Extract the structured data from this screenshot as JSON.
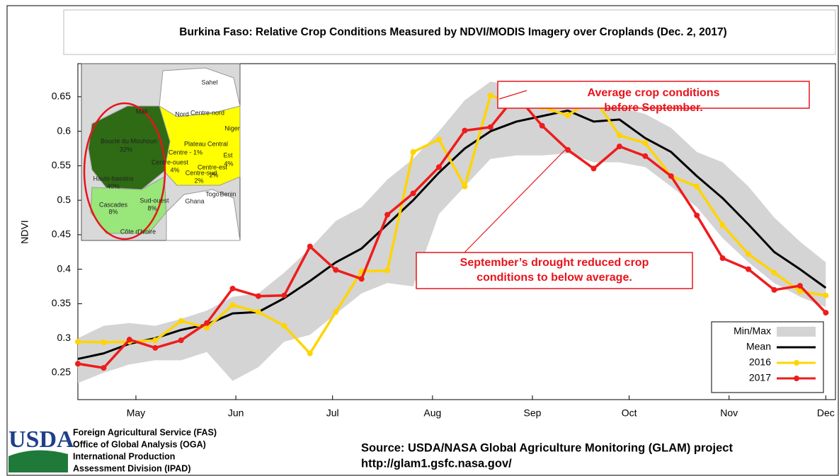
{
  "chart_data": {
    "type": "line",
    "title": "Burkina Faso: Relative Crop Conditions Measured by NDVI/MODIS Imagery over Croplands (Dec. 2, 2017)",
    "y_label": "NDVI",
    "x": [
      103,
      111,
      119,
      127,
      135,
      143,
      151,
      159,
      167,
      175,
      183,
      191,
      199,
      207,
      215,
      223,
      231,
      239,
      247,
      255,
      263,
      271,
      279,
      287,
      295,
      303,
      311,
      319,
      327,
      335
    ],
    "xlim": [
      103,
      338
    ],
    "xticks": [
      {
        "value": 121,
        "label": "May"
      },
      {
        "value": 152,
        "label": "Jun"
      },
      {
        "value": 182,
        "label": "Jul"
      },
      {
        "value": 213,
        "label": "Aug"
      },
      {
        "value": 244,
        "label": "Sep"
      },
      {
        "value": 274,
        "label": "Oct"
      },
      {
        "value": 305,
        "label": "Nov"
      },
      {
        "value": 335,
        "label": "Dec"
      }
    ],
    "ylim": [
      0.211,
      0.698
    ],
    "yticks": [
      0.25,
      0.3,
      0.35,
      0.4,
      0.45,
      0.5,
      0.55,
      0.6,
      0.65
    ],
    "legend": "lower right",
    "series": [
      {
        "name": "Min/Max",
        "type": "band",
        "color": "#d4d4d4",
        "high": [
          0.3,
          0.318,
          0.322,
          0.318,
          0.328,
          0.34,
          0.36,
          0.365,
          0.395,
          0.43,
          0.47,
          0.49,
          0.53,
          0.56,
          0.6,
          0.645,
          0.672,
          0.665,
          0.658,
          0.65,
          0.658,
          0.635,
          0.625,
          0.605,
          0.57,
          0.555,
          0.52,
          0.475,
          0.44,
          0.41
        ],
        "low": [
          0.235,
          0.25,
          0.262,
          0.268,
          0.268,
          0.28,
          0.238,
          0.258,
          0.295,
          0.305,
          0.335,
          0.365,
          0.38,
          0.375,
          0.48,
          0.52,
          0.56,
          0.565,
          0.565,
          0.568,
          0.555,
          0.555,
          0.548,
          0.52,
          0.49,
          0.445,
          0.41,
          0.38,
          0.36,
          0.345
        ]
      },
      {
        "name": "Mean",
        "color": "#000000",
        "markers": false,
        "values": [
          0.27,
          0.278,
          0.292,
          0.3,
          0.312,
          0.32,
          0.336,
          0.338,
          0.358,
          0.383,
          0.41,
          0.43,
          0.465,
          0.5,
          0.54,
          0.575,
          0.6,
          0.614,
          0.622,
          0.63,
          0.614,
          0.617,
          0.59,
          0.57,
          0.535,
          0.503,
          0.465,
          0.425,
          0.4,
          0.373
        ]
      },
      {
        "name": "2016",
        "color": "#ffd400",
        "markers": true,
        "values": [
          0.295,
          0.294,
          0.295,
          0.297,
          0.325,
          0.315,
          0.348,
          0.338,
          0.318,
          0.278,
          0.338,
          0.397,
          0.398,
          0.57,
          0.588,
          0.52,
          0.652,
          0.638,
          0.635,
          0.623,
          0.648,
          0.594,
          0.583,
          0.535,
          0.52,
          0.464,
          0.422,
          0.395,
          0.368,
          0.362
        ]
      },
      {
        "name": "2017",
        "color": "#ee1c1c",
        "markers": true,
        "values": [
          0.263,
          0.257,
          0.298,
          0.286,
          0.297,
          0.322,
          0.372,
          0.361,
          0.362,
          0.433,
          0.399,
          0.386,
          0.479,
          0.51,
          0.548,
          0.601,
          0.606,
          0.652,
          0.608,
          0.573,
          0.546,
          0.578,
          0.564,
          0.535,
          0.478,
          0.416,
          0.4,
          0.37,
          0.376,
          0.337
        ]
      }
    ],
    "annotations": [
      {
        "lines": [
          "Average crop conditions",
          "before September."
        ]
      },
      {
        "lines": [
          "September’s drought reduced crop",
          "conditions to below average."
        ]
      }
    ],
    "inset_map": {
      "labels": [
        "Sahel",
        "Mali",
        "Nord",
        "Centre-nord",
        "Niger",
        "Boucle du Mouhoun",
        "32%",
        "Plateau Central",
        "Centre - 1%",
        "Centre-ouest",
        "4%",
        "Centre-est",
        "2%",
        "Centre-sud",
        "2%",
        "Est",
        "4%",
        "Hauts-bassins",
        "40%",
        "Cascades",
        "8%",
        "Sud-ouest",
        "8%",
        "Ghana",
        "Togo",
        "Benin",
        "Côte d'Ivoire"
      ]
    }
  },
  "footer": {
    "agency_lines": [
      "Foreign Agricultural Service (FAS)",
      "Office of Global Analysis (OGA)",
      "International Production",
      "Assessment Division (IPAD)"
    ],
    "logo": "USDA",
    "source": "Source:  USDA/NASA Global Agriculture Monitoring (GLAM) project",
    "url": "http://glam1.gsfc.nasa.gov/"
  }
}
